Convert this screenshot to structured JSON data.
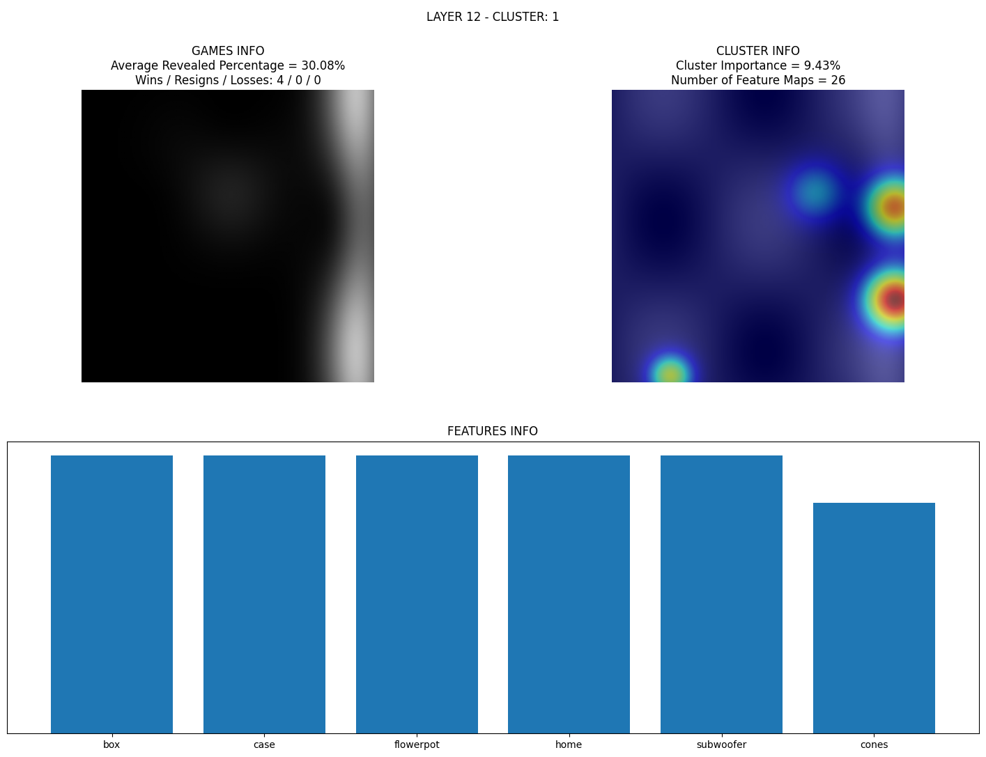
{
  "title": "LAYER 12 - CLUSTER: 1",
  "panels": [
    {
      "title": [
        "GAMES INFO",
        "Average Revealed Percentage = 30.08%",
        "Wins / Resigns / Losses: 4 / 0 / 0"
      ]
    },
    {
      "title": [
        "CLUSTER INFO",
        "Cluster Importance = 9.43%",
        "Number of Feature Maps = 26"
      ]
    }
  ],
  "chart_data": {
    "type": "bar",
    "title": "FEATURES INFO",
    "categories": [
      "box",
      "case",
      "flowerpot",
      "home",
      "subwoofer",
      "cones"
    ],
    "values": [
      1.0,
      1.0,
      1.0,
      1.0,
      1.0,
      0.83
    ],
    "color": "#1f77b4",
    "ylim": [
      0,
      1.05
    ],
    "yticks": [],
    "tick_labels": "x"
  }
}
